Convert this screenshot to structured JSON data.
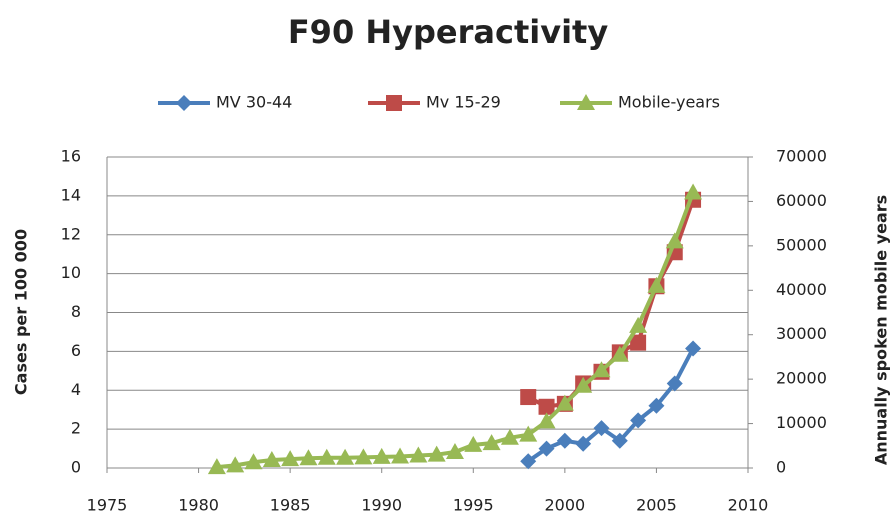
{
  "chart_data": {
    "type": "line",
    "title": "F90 Hyperactivity",
    "ylabel": "Cases per 100 000",
    "y2label": "Annually spoken mobile years",
    "xlim": [
      1975,
      2010
    ],
    "xticks": [
      1975,
      1980,
      1985,
      1990,
      1995,
      2000,
      2005,
      2010
    ],
    "ylim": [
      0,
      16
    ],
    "yticks": [
      0,
      2,
      4,
      6,
      8,
      10,
      12,
      14,
      16
    ],
    "y2lim": [
      0,
      70000
    ],
    "y2ticks": [
      0,
      10000,
      20000,
      30000,
      40000,
      50000,
      60000,
      70000
    ],
    "grid": true,
    "legend": "top",
    "series": [
      {
        "name": "MV 30-44",
        "color": "#4a7ebb",
        "marker": "diamond",
        "x": [
          1998,
          1999,
          2000,
          2001,
          2002,
          2003,
          2004,
          2005,
          2006,
          2007
        ],
        "values": [
          0.35,
          1.0,
          1.4,
          1.25,
          2.05,
          1.4,
          2.45,
          3.2,
          4.35,
          6.15
        ]
      },
      {
        "name": "Mv 15-29",
        "color": "#be4b48",
        "marker": "square",
        "x": [
          1998,
          1999,
          2000,
          2001,
          2002,
          2003,
          2004,
          2005,
          2006,
          2007
        ],
        "values": [
          3.65,
          3.15,
          3.3,
          4.35,
          4.95,
          5.95,
          6.45,
          9.35,
          11.1,
          13.8
        ]
      },
      {
        "name": "Mobile-years",
        "color": "#98b954",
        "marker": "triangle",
        "axis": "y2",
        "x": [
          1981,
          1982,
          1983,
          1984,
          1985,
          1986,
          1987,
          1988,
          1989,
          1990,
          1991,
          1992,
          1993,
          1994,
          1995,
          1996,
          1997,
          1998,
          1999,
          2000,
          2001,
          2002,
          2003,
          2004,
          2005,
          2006,
          2007
        ],
        "values": [
          200,
          600,
          1300,
          1800,
          2000,
          2200,
          2300,
          2300,
          2400,
          2500,
          2600,
          2800,
          3000,
          3600,
          5200,
          5600,
          6800,
          7500,
          10500,
          14500,
          18500,
          22000,
          25500,
          32000,
          41000,
          51000,
          62000
        ]
      }
    ]
  }
}
